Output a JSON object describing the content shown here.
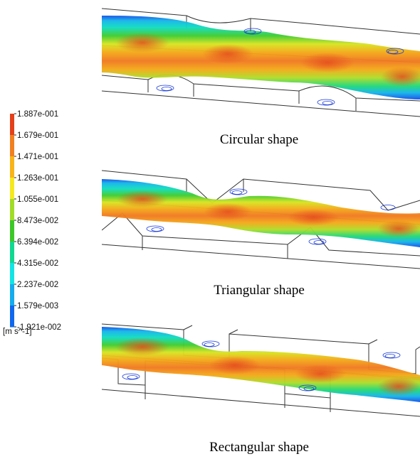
{
  "legend": {
    "ticks": [
      "1.887e-001",
      "1.679e-001",
      "1.471e-001",
      "1.263e-001",
      "1.055e-001",
      "8.473e-002",
      "6.394e-002",
      "4.315e-002",
      "2.237e-002",
      "1.579e-003",
      "-1.921e-002"
    ],
    "colors": [
      "#e4401a",
      "#f08020",
      "#f8b418",
      "#f6e820",
      "#a0dc28",
      "#3cc828",
      "#10d890",
      "#12e4e4",
      "#14acec",
      "#1068ee",
      "#1432dc"
    ],
    "unit": "[m s^-1]"
  },
  "panels": [
    {
      "shape": "circular",
      "caption": "Circular shape"
    },
    {
      "shape": "triangular",
      "caption": "Triangular shape"
    },
    {
      "shape": "rectangular",
      "caption": "Rectangular shape"
    }
  ]
}
